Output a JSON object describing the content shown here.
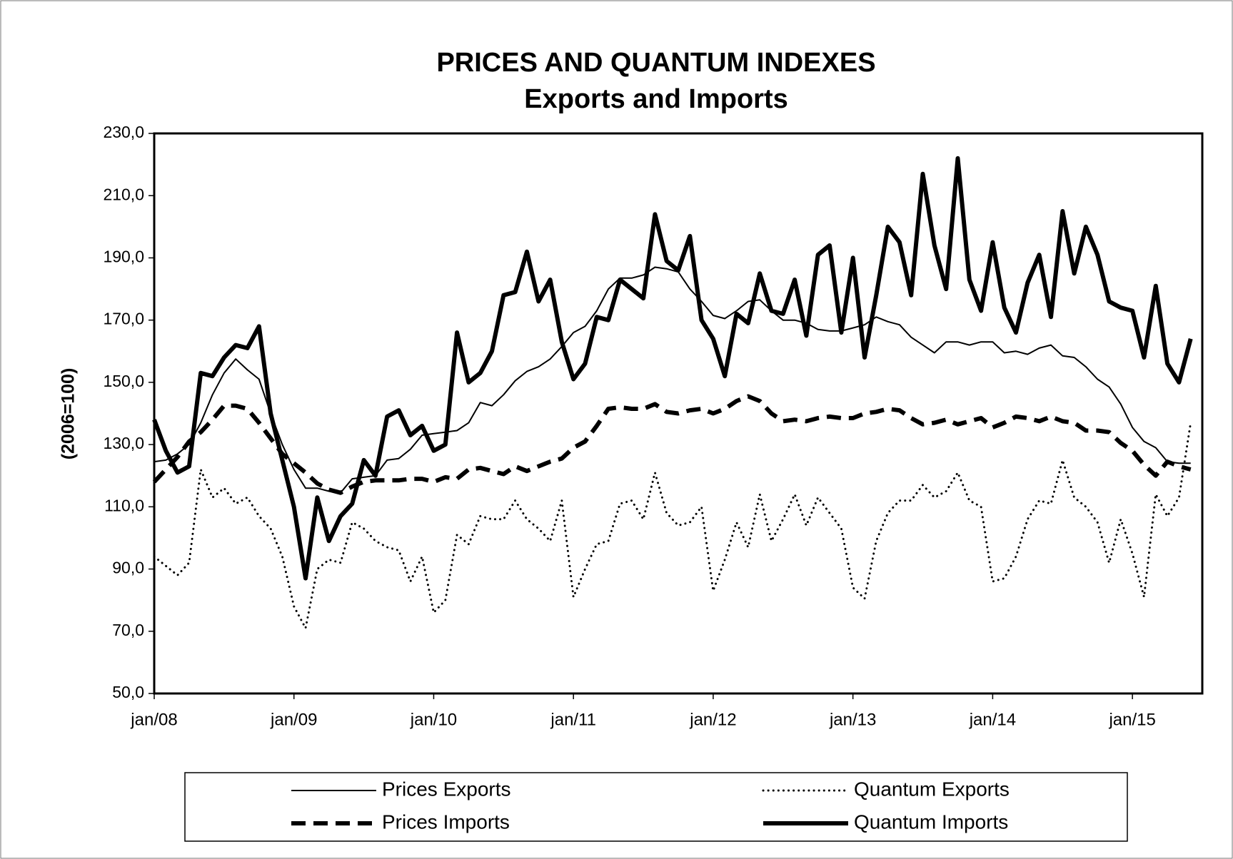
{
  "chart_data": {
    "type": "line",
    "title": "PRICES AND QUANTUM INDEXES",
    "subtitle": "Exports and Imports",
    "y_label": "(2006=100)",
    "categories": [
      "jan/08",
      null,
      null,
      null,
      null,
      null,
      null,
      null,
      null,
      null,
      null,
      null,
      "jan/09",
      null,
      null,
      null,
      null,
      null,
      null,
      null,
      null,
      null,
      null,
      null,
      "jan/10",
      null,
      null,
      null,
      null,
      null,
      null,
      null,
      null,
      null,
      null,
      null,
      "jan/11",
      null,
      null,
      null,
      null,
      null,
      null,
      null,
      null,
      null,
      null,
      null,
      "jan/12",
      null,
      null,
      null,
      null,
      null,
      null,
      null,
      null,
      null,
      null,
      null,
      "jan/13",
      null,
      null,
      null,
      null,
      null,
      null,
      null,
      null,
      null,
      null,
      null,
      "jan/14",
      null,
      null,
      null,
      null,
      null,
      null,
      null,
      null,
      null,
      null,
      null,
      "jan/15",
      null,
      null,
      null,
      null,
      null
    ],
    "ylim": [
      50,
      230
    ],
    "yticks": [
      {
        "value": 50,
        "label": "50,0"
      },
      {
        "value": 70,
        "label": "70,0"
      },
      {
        "value": 90,
        "label": "90,0"
      },
      {
        "value": 110,
        "label": "110,0"
      },
      {
        "value": 130,
        "label": "130,0"
      },
      {
        "value": 150,
        "label": "150,0"
      },
      {
        "value": 170,
        "label": "170,0"
      },
      {
        "value": 190,
        "label": "190,0"
      },
      {
        "value": 210,
        "label": "210,0"
      },
      {
        "value": 230,
        "label": "230,0"
      }
    ],
    "grid": false,
    "series": [
      {
        "name": "Prices Exports",
        "color": "#000000",
        "line_style": "solid",
        "line_width": 2,
        "values": [
          124.5,
          125,
          127,
          130,
          137,
          146,
          153,
          157.5,
          154,
          151,
          140,
          130,
          122,
          116,
          116,
          115,
          114.5,
          119,
          119.5,
          120,
          125,
          125.5,
          128.5,
          133,
          133.5,
          134,
          134.5,
          137,
          143.5,
          142.5,
          146,
          150.5,
          153.5,
          155,
          157.5,
          161.5,
          166,
          168,
          173,
          180,
          183.5,
          183.5,
          184.5,
          187,
          186.5,
          185.5,
          180,
          176,
          171.5,
          170.5,
          173,
          176,
          176.5,
          173,
          170,
          170,
          169,
          167,
          166.5,
          166.5,
          167.5,
          168.5,
          171,
          169.5,
          168.5,
          164.5,
          162,
          159.5,
          163,
          163,
          162,
          163,
          163,
          159.5,
          160,
          159,
          161,
          162,
          158.5,
          158,
          155,
          151,
          148.5,
          143,
          135.5,
          131,
          129,
          124.5,
          124,
          124
        ]
      },
      {
        "name": "Quantum Exports",
        "color": "#000000",
        "line_style": "dotted",
        "line_width": 3,
        "values": [
          94,
          91,
          88,
          92,
          122,
          113,
          116,
          111,
          113,
          107,
          103,
          94,
          78,
          71,
          90,
          93,
          92,
          105,
          103,
          99,
          97,
          96,
          86,
          94,
          76,
          80,
          101,
          98,
          107,
          106,
          106,
          112,
          106,
          103,
          99,
          112,
          81,
          90,
          98,
          99,
          111,
          112,
          106,
          121,
          108,
          104,
          105,
          110,
          83,
          93,
          105,
          97,
          114,
          99,
          106,
          114,
          104,
          113,
          108,
          103,
          84,
          80.5,
          99,
          108,
          112,
          112,
          117,
          113,
          115,
          121,
          112,
          110,
          86,
          87,
          94,
          106,
          112,
          111,
          125,
          113,
          110,
          105,
          92,
          106,
          95,
          81,
          114,
          107,
          113,
          137
        ]
      },
      {
        "name": "Prices Imports",
        "color": "#000000",
        "line_style": "dashed",
        "line_width": 6,
        "values": [
          118,
          122,
          126,
          131,
          134,
          138,
          142.5,
          142.5,
          141.5,
          137,
          132,
          127,
          124,
          121,
          117.5,
          115.5,
          114.5,
          116.5,
          118,
          118.5,
          118.5,
          118.5,
          119,
          119,
          118,
          119.5,
          119,
          122,
          122.5,
          121.5,
          120.5,
          123,
          121.5,
          123,
          124.5,
          125.5,
          129,
          131,
          136,
          141.5,
          142,
          141.5,
          141.5,
          143,
          140.5,
          140,
          141,
          141.5,
          140,
          141.5,
          144,
          145.5,
          144,
          140,
          137.5,
          138,
          137.5,
          138.5,
          139,
          138.5,
          138.5,
          140,
          140.5,
          141.5,
          141,
          138.5,
          136.5,
          137,
          138,
          136.5,
          137.5,
          138.5,
          135.5,
          137,
          139,
          138.5,
          137.5,
          139,
          137.5,
          137,
          134.5,
          134.5,
          134,
          130.5,
          128,
          123.5,
          120,
          124.5,
          123,
          122
        ]
      },
      {
        "name": "Quantum Imports",
        "color": "#000000",
        "line_style": "solid",
        "line_width": 6,
        "values": [
          138,
          128,
          121,
          123,
          153,
          152,
          158,
          162,
          161,
          168,
          140,
          125,
          110,
          87,
          113,
          99,
          107,
          111,
          125,
          120,
          139,
          141,
          133,
          136,
          128,
          130,
          166,
          150,
          153,
          160,
          178,
          179,
          192,
          176,
          183,
          163,
          151,
          156,
          171,
          170,
          183,
          180,
          177,
          204,
          189,
          186,
          197,
          170,
          164,
          152,
          172,
          169,
          185,
          173,
          172,
          183,
          165,
          191,
          194,
          166,
          190,
          158,
          178,
          200,
          195,
          178,
          217,
          194,
          180,
          222,
          183,
          173,
          195,
          174,
          166,
          182,
          191,
          171,
          205,
          185,
          200,
          191,
          176,
          174,
          173,
          158,
          181,
          156,
          150,
          164
        ]
      }
    ]
  }
}
